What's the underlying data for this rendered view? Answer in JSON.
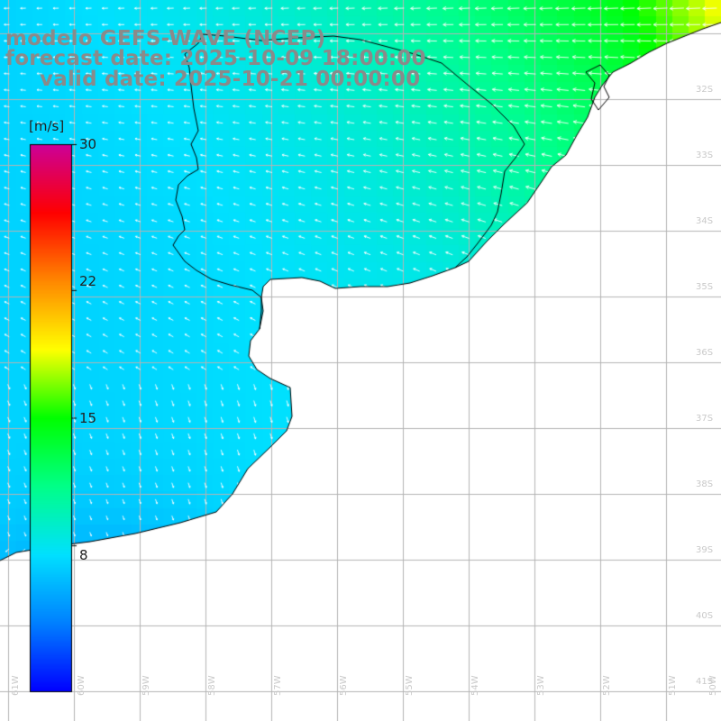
{
  "header": {
    "model": "modelo GEFS-WAVE (NCEP)",
    "forecast": "forecast date: 2025-10-09 18:00:00",
    "valid": "valid date: 2025-10-21 00:00:00"
  },
  "colorbar": {
    "unit": "[m/s]",
    "ticks": [
      "30",
      "22",
      "15",
      "8"
    ],
    "tick_values": [
      30,
      22,
      15,
      8
    ],
    "range": [
      0,
      30
    ],
    "colors": [
      "#0000ff",
      "#0080ff",
      "#00e0ff",
      "#00ff88",
      "#00ff00",
      "#ffff00",
      "#ff8800",
      "#ff0000",
      "#cc0099"
    ]
  },
  "map": {
    "lon_labels": [
      "61W",
      "60W",
      "59W",
      "58W",
      "57W",
      "56W",
      "55W",
      "54W",
      "53W",
      "52W",
      "51W",
      "50W"
    ],
    "lat_labels": [
      "32S",
      "33S",
      "34S",
      "35S",
      "36S",
      "37S",
      "38S",
      "39S",
      "40S",
      "41S"
    ],
    "land_color": "#ffffff",
    "grid_color": "#b4b4b4",
    "coast_color": "#000000",
    "arrow_color": "#ffffff"
  }
}
